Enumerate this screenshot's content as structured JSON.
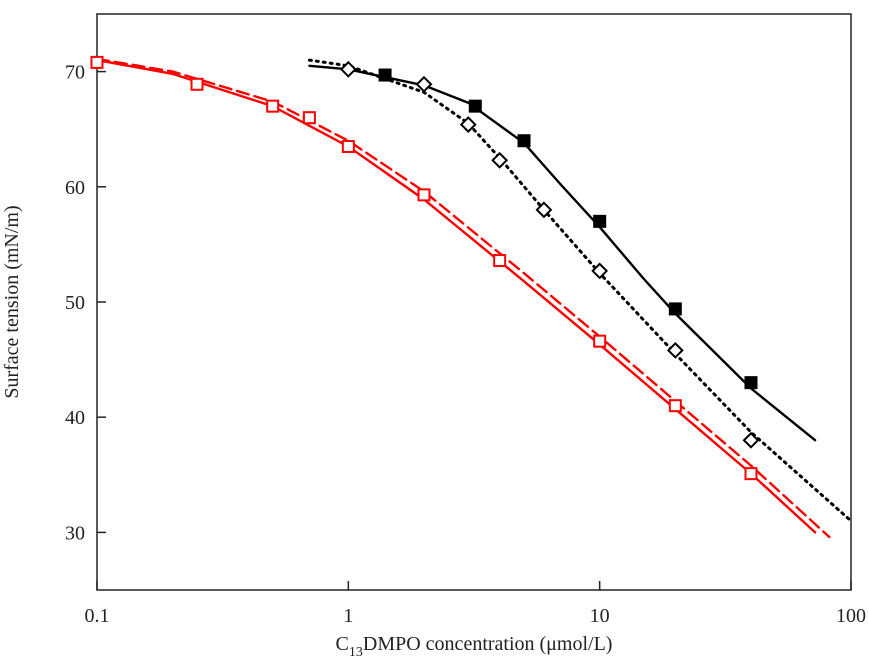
{
  "chart_data": {
    "type": "line",
    "x_label": [
      "C",
      "13",
      "DMPO concentration (μmol/L)"
    ],
    "y_label": "Surface tension (mN/m)",
    "xscale": "log",
    "xlim": [
      0.1,
      100
    ],
    "xticks": [
      0.1,
      1,
      10,
      100
    ],
    "ylim": [
      25,
      75
    ],
    "yticks": [
      30,
      40,
      50,
      60,
      70
    ],
    "series": [
      {
        "color": "#ff0000",
        "line": "solid",
        "marker": "none",
        "x": [
          0.1,
          0.2,
          0.5,
          1,
          2,
          5,
          10,
          20,
          40,
          72
        ],
        "values": [
          71,
          69.8,
          67,
          63.5,
          58.9,
          51.8,
          46.3,
          40.7,
          35.1,
          30
        ]
      },
      {
        "color": "#ff0000",
        "line": "dashed",
        "marker": "none",
        "x": [
          0.1,
          0.2,
          0.5,
          1,
          2,
          5,
          10,
          20,
          40,
          82
        ],
        "values": [
          71.1,
          70,
          67.4,
          64,
          59.6,
          52.5,
          47,
          41.4,
          35.8,
          29.6
        ]
      },
      {
        "color": "#000000",
        "line": "solid",
        "marker": "none",
        "x": [
          0.7,
          1,
          2,
          3,
          5,
          7,
          10,
          15,
          20,
          40,
          72
        ],
        "values": [
          70.5,
          70.2,
          68.8,
          67.3,
          63.8,
          60.2,
          56.5,
          52,
          49,
          42.5,
          38
        ]
      },
      {
        "color": "#000000",
        "line": "dotted",
        "marker": "none",
        "x": [
          0.7,
          1,
          2,
          3,
          4,
          6,
          10,
          20,
          40,
          100
        ],
        "values": [
          71,
          70.5,
          68.2,
          65.5,
          62.5,
          58,
          52.5,
          45.5,
          38.7,
          31
        ]
      },
      {
        "color": "#ff0000",
        "line": "none",
        "marker": "open-square",
        "x": [
          0.1,
          0.25,
          0.5,
          0.7,
          1,
          2,
          4,
          10,
          20,
          40
        ],
        "values": [
          70.8,
          68.9,
          67.0,
          66.0,
          63.5,
          59.3,
          53.6,
          46.6,
          41.0,
          35.1
        ]
      },
      {
        "color": "#000000",
        "line": "none",
        "marker": "filled-square",
        "x": [
          1.4,
          3.2,
          5,
          10,
          20,
          40
        ],
        "values": [
          69.7,
          67.0,
          64.0,
          57.0,
          49.4,
          43.0
        ]
      },
      {
        "color": "#000000",
        "line": "none",
        "marker": "open-diamond",
        "x": [
          1,
          2,
          3,
          4,
          6,
          10,
          20,
          40
        ],
        "values": [
          70.2,
          68.9,
          65.4,
          62.3,
          58.0,
          52.7,
          45.8,
          38.0
        ]
      }
    ]
  }
}
